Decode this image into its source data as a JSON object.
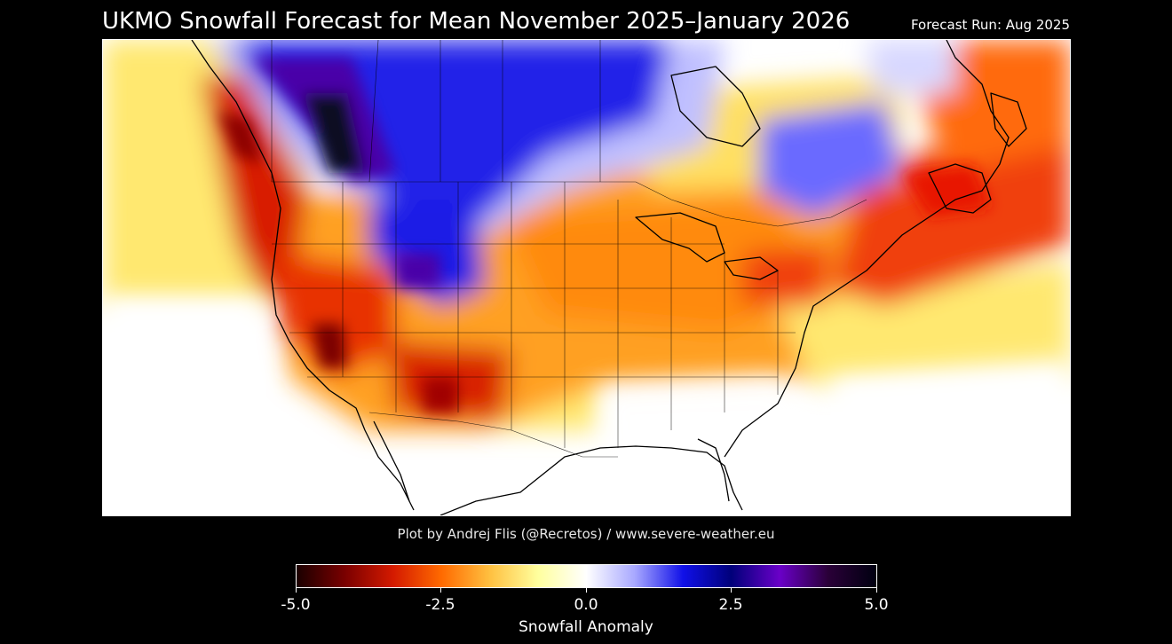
{
  "title": "UKMO Snowfall Forecast for Mean November 2025–January 2026",
  "forecast_run": "Forecast Run: Aug 2025",
  "credit": "Plot by Andrej Flis (@Recretos) / www.severe-weather.eu",
  "colorbar": {
    "label": "Snowfall Anomaly",
    "min": -5.0,
    "max": 5.0,
    "ticks": [
      "-5.0",
      "-2.5",
      "0.0",
      "2.5",
      "5.0"
    ],
    "stops": [
      "#1a0000",
      "#7a0000",
      "#d41a00",
      "#ff6a00",
      "#ffc040",
      "#ffff9e",
      "#ffffff",
      "#a8a8ff",
      "#1010e8",
      "#00007a",
      "#6a00c8",
      "#2a0038",
      "#000010"
    ]
  },
  "map": {
    "region": "North America",
    "anomaly_colors": {
      "strong_deficit": "#7a0000",
      "deficit": "#e63200",
      "mild_deficit": "#ffa020",
      "slight_deficit": "#ffe870",
      "neutral": "#ffffff",
      "slight_surplus": "#c8c8ff",
      "surplus": "#1a1ae6",
      "strong_surplus": "#4a00a8",
      "extreme_surplus": "#101020"
    }
  }
}
